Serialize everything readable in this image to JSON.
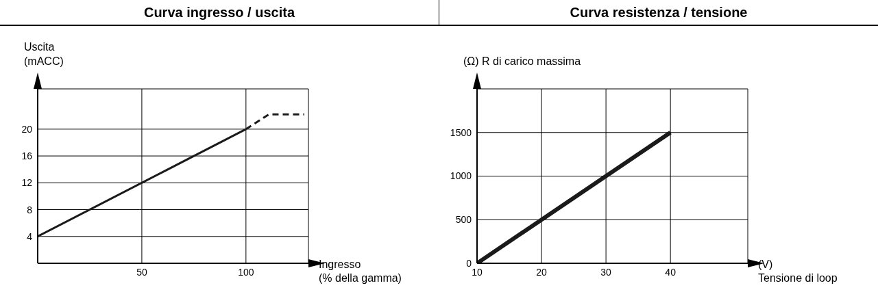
{
  "chart_data": [
    {
      "type": "line",
      "title": "Curva ingresso / uscita",
      "xlabel": "Ingresso\n(% della gamma)",
      "ylabel": "Uscita\n(mACC)",
      "xlim": [
        0,
        130
      ],
      "xticks": [
        50,
        100
      ],
      "ylim": [
        0,
        26
      ],
      "yticks": [
        4,
        8,
        12,
        16,
        20
      ],
      "grid": true,
      "series": [
        {
          "color": "#1a1a1a",
          "x": [
            0,
            100
          ],
          "values": [
            4,
            20
          ]
        },
        {
          "color": "#1a1a1a",
          "x": [
            100,
            111,
            128
          ],
          "values": [
            20,
            22.2,
            22.2
          ],
          "line_style": "dashed"
        }
      ]
    },
    {
      "type": "line",
      "title": "Curva resistenza / tensione",
      "xlabel": "(V)\nTensione di loop",
      "ylabel": "(Ω) R di carico massima",
      "xlim": [
        10,
        52
      ],
      "xticks": [
        10,
        20,
        30,
        40
      ],
      "ylim": [
        0,
        2000
      ],
      "yticks": [
        0,
        500,
        1000,
        1500
      ],
      "grid": true,
      "series": [
        {
          "color": "#1a1a1a",
          "x": [
            10,
            40
          ],
          "values": [
            0,
            1500
          ]
        }
      ]
    }
  ]
}
